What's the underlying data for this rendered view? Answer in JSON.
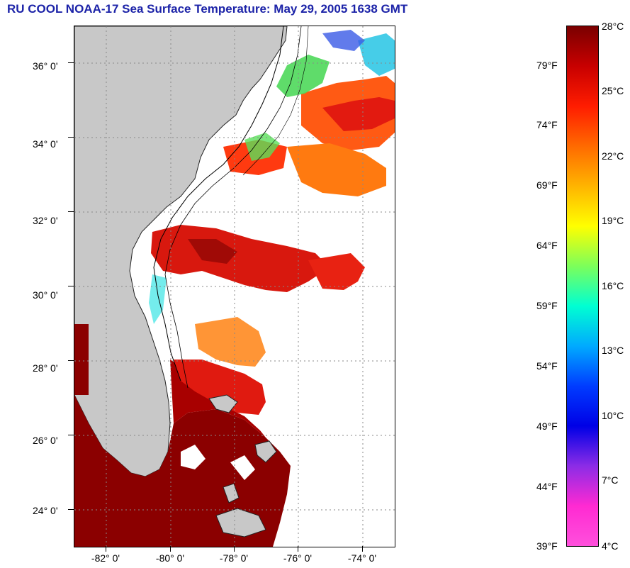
{
  "title": "RU COOL  NOAA-17  Sea Surface Temperature:  May 29, 2005 1638 GMT",
  "map": {
    "latitude_labels": [
      "36° 0'",
      "34° 0'",
      "32° 0'",
      "30° 0'",
      "28° 0'",
      "26° 0'",
      "24° 0'"
    ],
    "latitude_values": [
      36,
      34,
      32,
      30,
      28,
      26,
      24
    ],
    "longitude_labels": [
      "-82° 0'",
      "-80° 0'",
      "-78° 0'",
      "-76° 0'",
      "-74° 0'"
    ],
    "longitude_values": [
      -82,
      -80,
      -78,
      -76,
      -74
    ],
    "lat_range": [
      23,
      37
    ],
    "lon_range": [
      -83,
      -73
    ],
    "grid": "dotted",
    "colors": {
      "land": "#c8c8c8",
      "cloud": "#ffffff",
      "warm": "#8b0000",
      "red": "#e21a10",
      "orange": "#ff7a10",
      "yellow": "#f4e21a",
      "green": "#4ed85a",
      "cyan": "#32e6e6",
      "blue": "#2a64e6"
    }
  },
  "colorbar": {
    "fahrenheit_labels": [
      "79°F",
      "74°F",
      "69°F",
      "64°F",
      "59°F",
      "54°F",
      "49°F",
      "44°F",
      "39°F"
    ],
    "celsius_labels": [
      "28°C",
      "25°C",
      "22°C",
      "19°C",
      "16°C",
      "13°C",
      "10°C",
      "7°C",
      "4°C"
    ],
    "celsius_range": [
      4,
      28
    ],
    "colors_top_to_bottom": [
      "#7a0000",
      "#c80000",
      "#ff1c00",
      "#ff6a00",
      "#ffb400",
      "#ffff00",
      "#7cff5a",
      "#00ffd2",
      "#00aaff",
      "#003cff",
      "#0000e6",
      "#8c2ce6",
      "#ff2ad2",
      "#ff50dc"
    ]
  }
}
